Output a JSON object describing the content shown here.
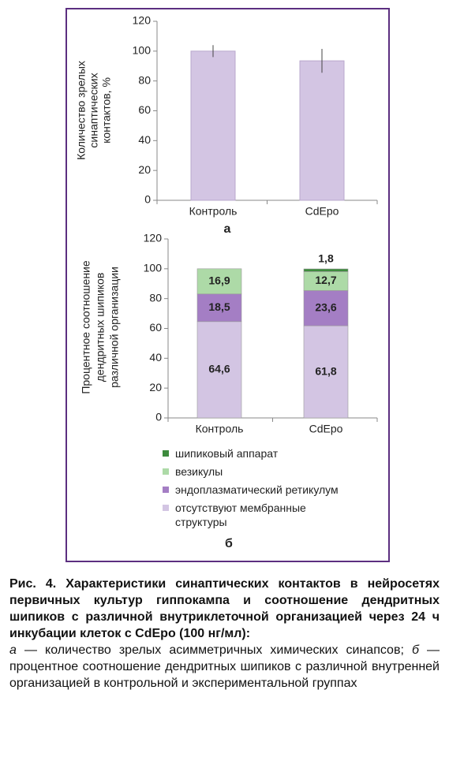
{
  "chart_data": [
    {
      "type": "bar",
      "label": "а",
      "ylabel": [
        "Количество зрелых",
        "синаптических",
        "контактов, %"
      ],
      "categories": [
        "Контроль",
        "CdEpo"
      ],
      "values": [
        100,
        93.5
      ],
      "errors": [
        4,
        8
      ],
      "color": "#d3c5e3",
      "ylim": [
        0,
        120
      ],
      "yticks": [
        0,
        20,
        40,
        60,
        80,
        100,
        120
      ]
    },
    {
      "type": "stacked_bar",
      "label": "б",
      "ylabel": [
        "Процентное соотношение",
        "дендритных шипиков",
        "различной организации"
      ],
      "categories": [
        "Контроль",
        "CdEpo"
      ],
      "series": [
        {
          "name": "отсутствуют мембранные структуры",
          "color": "#d3c5e3",
          "values": [
            64.6,
            61.8
          ],
          "value_labels": [
            "64,6",
            "61,8"
          ]
        },
        {
          "name": "эндоплазматический ретикулум",
          "color": "#a47ec4",
          "values": [
            18.5,
            23.6
          ],
          "value_labels": [
            "18,5",
            "23,6"
          ]
        },
        {
          "name": "везикулы",
          "color": "#addaa7",
          "values": [
            16.9,
            12.7
          ],
          "value_labels": [
            "16,9",
            "12,7"
          ]
        },
        {
          "name": "шипиковый аппарат",
          "color": "#3d8b3d",
          "values": [
            null,
            1.8
          ],
          "value_labels": [
            null,
            "1,8"
          ]
        }
      ],
      "ylim": [
        0,
        120
      ],
      "yticks": [
        0,
        20,
        40,
        60,
        80,
        100,
        120
      ]
    }
  ],
  "caption": {
    "title": "Рис. 4. Характеристики синаптических контактов в нейросетях первичных культур гиппокампа и соотношение дендритных шипиков с различной внутриклеточной организацией через 24 ч инкубации клеток с CdEpo (100 нг/мл):",
    "body": [
      {
        "text": "а",
        "italic": true
      },
      {
        "text": " — количество зрелых асимметричных химических синапсов; ",
        "italic": false
      },
      {
        "text": "б",
        "italic": true
      },
      {
        "text": " — процентное соотношение дендритных шипиков с различной внутренней организацией в контрольной и экспериментальной группах",
        "italic": false
      }
    ]
  }
}
